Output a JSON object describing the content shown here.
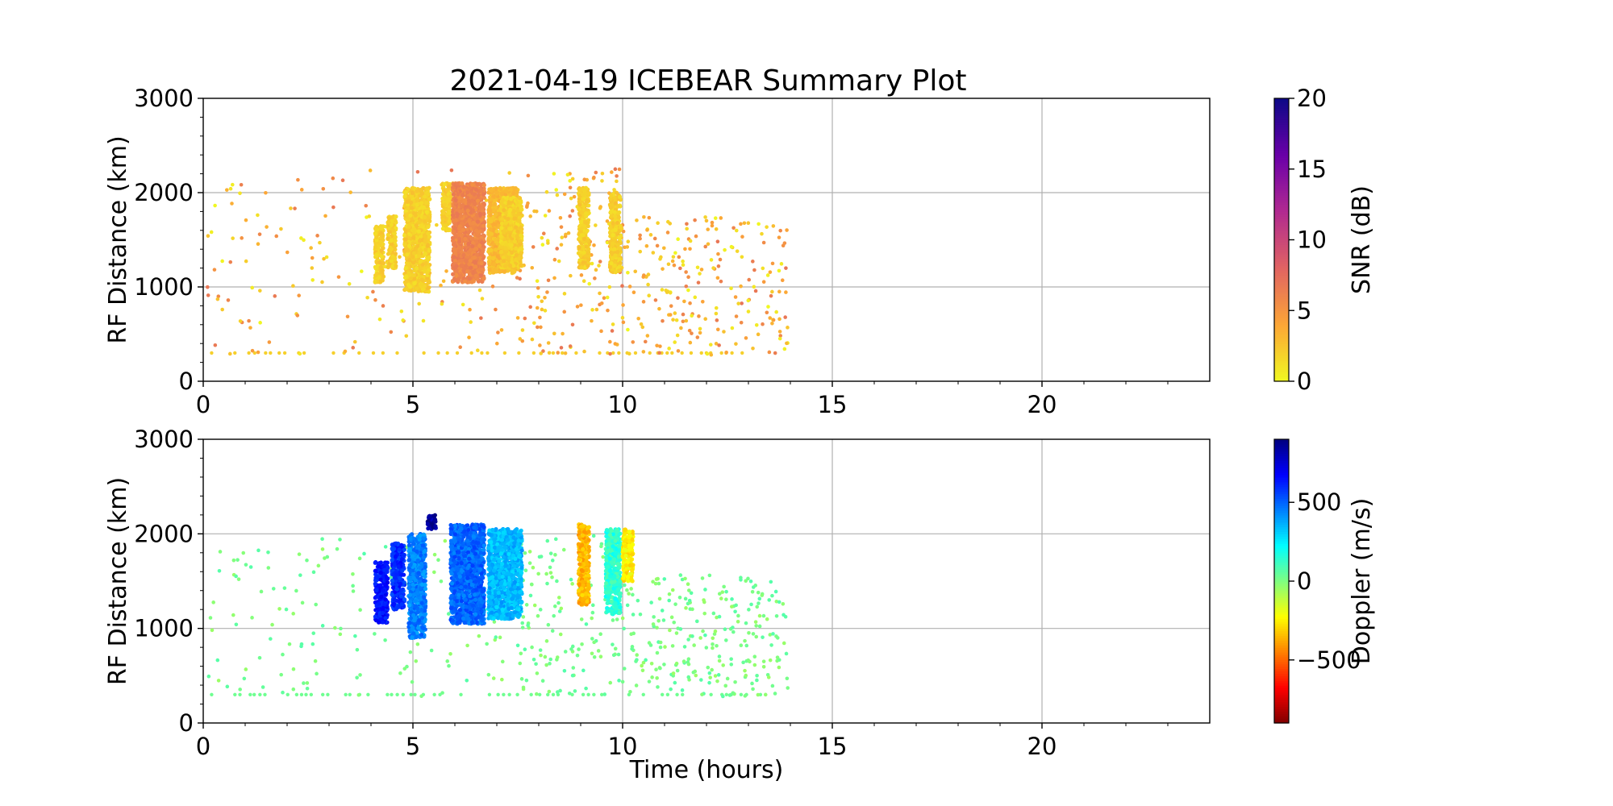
{
  "figure": {
    "title": "2021-04-19 ICEBEAR Summary Plot"
  },
  "chart_data": [
    {
      "type": "scatter",
      "panel": "top",
      "title": "2021-04-19 ICEBEAR Summary Plot",
      "xlabel": "",
      "ylabel": "RF Distance (km)",
      "xlim": [
        0,
        24
      ],
      "ylim": [
        0,
        3000
      ],
      "x_ticks": [
        0,
        5,
        10,
        15,
        20
      ],
      "y_ticks": [
        0,
        1000,
        2000,
        3000
      ],
      "grid": true,
      "color_variable": "SNR (dB)",
      "colorbar": {
        "label": "SNR (dB)",
        "ticks": [
          0,
          5,
          10,
          15,
          20
        ],
        "range": [
          0,
          20
        ],
        "colormap": "plasma_r",
        "colors": [
          "#f0f921",
          "#fca636",
          "#e16462",
          "#b12a90",
          "#6a00a8",
          "#0d0887"
        ]
      },
      "clusters": [
        {
          "t0": 4.1,
          "t1": 4.3,
          "r0": 1050,
          "r1": 1650,
          "value": 2
        },
        {
          "t0": 4.4,
          "t1": 4.6,
          "r0": 1200,
          "r1": 1750,
          "value": 2
        },
        {
          "t0": 4.8,
          "t1": 5.4,
          "r0": 950,
          "r1": 2050,
          "value": 2
        },
        {
          "t0": 5.7,
          "t1": 5.9,
          "r0": 1600,
          "r1": 2100,
          "value": 2
        },
        {
          "t0": 5.95,
          "t1": 6.7,
          "r0": 1050,
          "r1": 2100,
          "value": 6
        },
        {
          "t0": 6.8,
          "t1": 7.5,
          "r0": 1150,
          "r1": 2050,
          "value": 3
        },
        {
          "t0": 7.1,
          "t1": 7.6,
          "r0": 1200,
          "r1": 1950,
          "value": 2
        },
        {
          "t0": 8.95,
          "t1": 9.2,
          "r0": 1200,
          "r1": 2050,
          "value": 2
        },
        {
          "t0": 9.7,
          "t1": 9.95,
          "r0": 1150,
          "r1": 2000,
          "value": 2
        }
      ],
      "scatter": {
        "t0": 0.1,
        "t1": 13.95,
        "r0": 280,
        "r1": 2250,
        "value_min": 0,
        "value_max": 7
      },
      "baseline": {
        "range": 300,
        "t0": 0.2,
        "t1": 13.9,
        "value": 2
      }
    },
    {
      "type": "scatter",
      "panel": "bottom",
      "title": "",
      "xlabel": "Time (hours)",
      "ylabel": "RF Distance (km)",
      "xlim": [
        0,
        24
      ],
      "ylim": [
        0,
        3000
      ],
      "x_ticks": [
        0,
        5,
        10,
        15,
        20
      ],
      "y_ticks": [
        0,
        1000,
        2000,
        3000
      ],
      "grid": true,
      "color_variable": "Doppler (m/s)",
      "colorbar": {
        "label": "Doppler (m/s)",
        "ticks": [
          -500,
          0,
          500
        ],
        "tick_labels": [
          "−500",
          "0",
          "500"
        ],
        "range": [
          -900,
          900
        ],
        "colormap": "jet_r",
        "colors": [
          "#800000",
          "#ff0000",
          "#ff8000",
          "#ffff00",
          "#80ff80",
          "#00ffff",
          "#0080ff",
          "#0000ff",
          "#000080"
        ]
      },
      "clusters": [
        {
          "t0": 4.1,
          "t1": 4.4,
          "r0": 1050,
          "r1": 1700,
          "value": 650
        },
        {
          "t0": 4.5,
          "t1": 4.8,
          "r0": 1200,
          "r1": 1900,
          "value": 600
        },
        {
          "t0": 4.9,
          "t1": 5.3,
          "r0": 900,
          "r1": 2000,
          "value": 450
        },
        {
          "t0": 5.35,
          "t1": 5.55,
          "r0": 2050,
          "r1": 2200,
          "value": 850
        },
        {
          "t0": 5.9,
          "t1": 6.7,
          "r0": 1050,
          "r1": 2100,
          "value": 500
        },
        {
          "t0": 6.8,
          "t1": 7.6,
          "r0": 1100,
          "r1": 2050,
          "value": 350
        },
        {
          "t0": 8.95,
          "t1": 9.2,
          "r0": 1250,
          "r1": 2100,
          "value": -350
        },
        {
          "t0": 9.6,
          "t1": 9.95,
          "r0": 1150,
          "r1": 2050,
          "value": 150
        },
        {
          "t0": 10.0,
          "t1": 10.25,
          "r0": 1500,
          "r1": 2050,
          "value": -250
        }
      ],
      "scatter": {
        "t0": 0.1,
        "t1": 13.95,
        "r0": 280,
        "r1": 2000,
        "value_min": -50,
        "value_max": 80
      },
      "baseline": {
        "range": 300,
        "t0": 0.2,
        "t1": 13.9,
        "value": 30
      }
    }
  ]
}
